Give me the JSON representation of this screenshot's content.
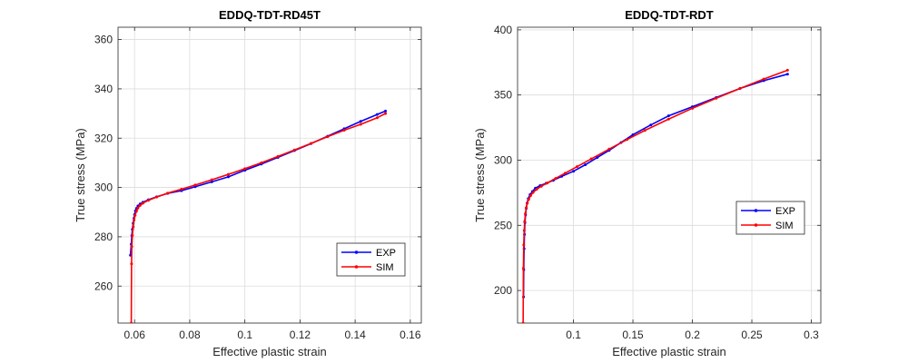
{
  "chart_data": [
    {
      "type": "line",
      "title": "EDDQ-TDT-RD45T",
      "xlabel": "Effective plastic strain",
      "ylabel": "True stress (MPa)",
      "xlim": [
        0.054,
        0.164
      ],
      "ylim": [
        245,
        365
      ],
      "xticks": [
        0.06,
        0.08,
        0.1,
        0.12,
        0.14,
        0.16
      ],
      "xtick_labels": [
        "0.06",
        "0.08",
        "0.1",
        "0.12",
        "0.14",
        "0.16"
      ],
      "yticks": [
        260,
        280,
        300,
        320,
        340,
        360
      ],
      "ytick_labels": [
        "260",
        "280",
        "300",
        "320",
        "340",
        "360"
      ],
      "grid": true,
      "legend_position": "bottom-right",
      "series": [
        {
          "name": "EXP",
          "color": "#0000ff",
          "x": [
            0.0585,
            0.0588,
            0.059,
            0.0592,
            0.0595,
            0.0598,
            0.06,
            0.0603,
            0.0607,
            0.0612,
            0.062,
            0.063,
            0.065,
            0.068,
            0.072,
            0.077,
            0.082,
            0.088,
            0.094,
            0.1,
            0.106,
            0.112,
            0.118,
            0.124,
            0.13,
            0.136,
            0.142,
            0.148,
            0.151
          ],
          "y": [
            272.5,
            277,
            280.5,
            283,
            285.5,
            287.5,
            289,
            290.5,
            291.5,
            292.5,
            293.3,
            294,
            295,
            296.2,
            297.6,
            298.7,
            300.3,
            302.3,
            304.3,
            307,
            309.5,
            312.2,
            315,
            317.8,
            320.8,
            323.8,
            326.8,
            329.6,
            331
          ]
        },
        {
          "name": "SIM",
          "color": "#ff0000",
          "x": [
            0.0588,
            0.0589,
            0.059,
            0.0592,
            0.0595,
            0.0598,
            0.0602,
            0.0607,
            0.0612,
            0.062,
            0.063,
            0.065,
            0.068,
            0.072,
            0.077,
            0.082,
            0.088,
            0.094,
            0.1,
            0.106,
            0.112,
            0.118,
            0.124,
            0.13,
            0.136,
            0.142,
            0.148,
            0.151
          ],
          "y": [
            245,
            269,
            276,
            280.5,
            284,
            286.8,
            288.7,
            290.4,
            291.6,
            292.7,
            293.6,
            294.8,
            296.1,
            297.7,
            299.3,
            301,
            303.1,
            305.3,
            307.6,
            310,
            312.6,
            315.2,
            317.9,
            320.6,
            323.2,
            325.6,
            328.3,
            330
          ]
        }
      ]
    },
    {
      "type": "line",
      "title": "EDDQ-TDT-RDT",
      "xlabel": "Effective plastic strain",
      "ylabel": "True stress (MPa)",
      "xlim": [
        0.053,
        0.308
      ],
      "ylim": [
        175,
        402
      ],
      "xticks": [
        0.1,
        0.15,
        0.2,
        0.25,
        0.3
      ],
      "xtick_labels": [
        "0.1",
        "0.15",
        "0.2",
        "0.25",
        "0.3"
      ],
      "yticks": [
        200,
        250,
        300,
        350,
        400
      ],
      "ytick_labels": [
        "200",
        "250",
        "300",
        "350",
        "400"
      ],
      "grid": true,
      "legend_position": "right",
      "series": [
        {
          "name": "EXP",
          "color": "#0000ff",
          "x": [
            0.058,
            0.0582,
            0.0585,
            0.0588,
            0.0592,
            0.0597,
            0.0603,
            0.061,
            0.062,
            0.0635,
            0.0655,
            0.068,
            0.072,
            0.077,
            0.083,
            0.09,
            0.1,
            0.11,
            0.12,
            0.13,
            0.14,
            0.15,
            0.165,
            0.18,
            0.2,
            0.22,
            0.24,
            0.26,
            0.28
          ],
          "y": [
            195,
            216,
            232,
            243,
            252,
            258,
            263,
            267,
            270.5,
            273.5,
            276,
            278.5,
            280.5,
            282.2,
            284.5,
            287.5,
            291.5,
            296.5,
            302,
            307.5,
            313.5,
            319.5,
            327,
            334,
            341,
            348,
            355,
            361,
            366
          ]
        },
        {
          "name": "SIM",
          "color": "#ff0000",
          "x": [
            0.0577,
            0.0579,
            0.0582,
            0.0586,
            0.059,
            0.0596,
            0.0603,
            0.0612,
            0.0624,
            0.064,
            0.066,
            0.069,
            0.073,
            0.078,
            0.085,
            0.093,
            0.103,
            0.115,
            0.13,
            0.145,
            0.16,
            0.18,
            0.2,
            0.22,
            0.24,
            0.26,
            0.28
          ],
          "y": [
            175,
            217,
            235,
            246,
            253,
            259,
            263.5,
            267,
            270,
            272.8,
            275.2,
            277.6,
            280,
            282.5,
            286,
            290,
            295,
            301,
            308.5,
            315.8,
            322.8,
            331.5,
            339.8,
            347.5,
            355,
            362.2,
            369
          ]
        }
      ]
    }
  ]
}
